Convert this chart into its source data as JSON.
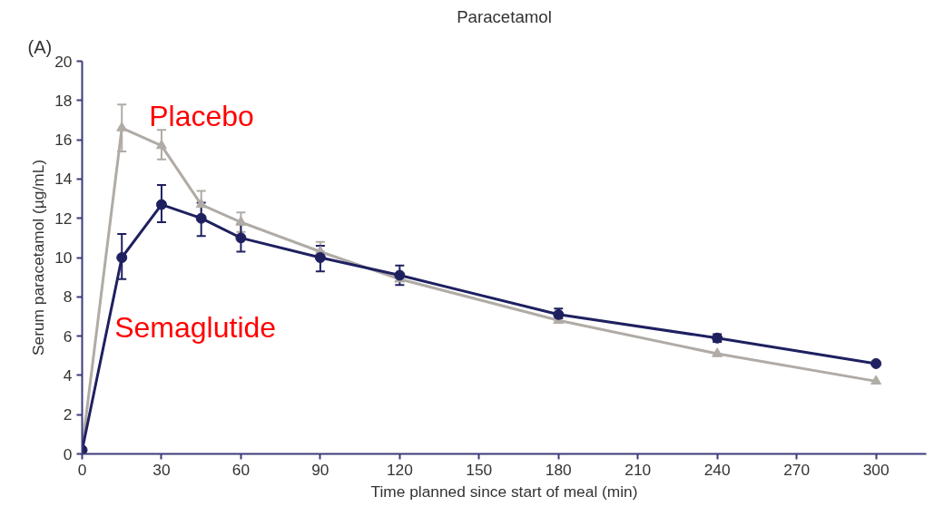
{
  "chart_data": {
    "type": "line",
    "title": "Paracetamol",
    "xlabel": "Time planned since start of meal (min)",
    "ylabel": "Serum paracetamol (µg/mL)",
    "annotations": [
      "(A)"
    ],
    "x": [
      0,
      15,
      30,
      45,
      60,
      90,
      120,
      180,
      240,
      300
    ],
    "series": [
      {
        "name": "Placebo",
        "color": "#b0aba5",
        "marker": "triangle",
        "values": [
          0.3,
          16.6,
          15.7,
          12.7,
          11.8,
          10.3,
          8.9,
          6.8,
          5.1,
          3.7
        ],
        "errors": [
          null,
          [
            15.4,
            17.8
          ],
          [
            15.0,
            16.5
          ],
          0.7,
          [
            11.3,
            12.3
          ],
          [
            10.3,
            10.8
          ],
          null,
          null,
          null,
          null
        ]
      },
      {
        "name": "Semaglutide",
        "color": "#1f2060",
        "marker": "circle",
        "values": [
          0.2,
          10.0,
          12.7,
          12.0,
          11.0,
          10.0,
          9.1,
          7.1,
          5.9,
          4.6
        ],
        "errors": [
          null,
          [
            8.9,
            11.2
          ],
          [
            11.8,
            13.7
          ],
          [
            11.1,
            12.8
          ],
          [
            10.3,
            11.7
          ],
          [
            9.3,
            10.6
          ],
          [
            8.6,
            9.6
          ],
          [
            6.9,
            7.4
          ],
          [
            5.7,
            6.1
          ],
          null
        ]
      }
    ],
    "xlim": [
      0,
      319
    ],
    "ylim": [
      0,
      20
    ],
    "xticks": [
      0,
      30,
      60,
      90,
      120,
      150,
      180,
      210,
      240,
      270,
      300
    ],
    "yticks": [
      0,
      2,
      4,
      6,
      8,
      10,
      12,
      14,
      16,
      18,
      20
    ],
    "grid": false,
    "legend": false,
    "line_style": "solid"
  }
}
